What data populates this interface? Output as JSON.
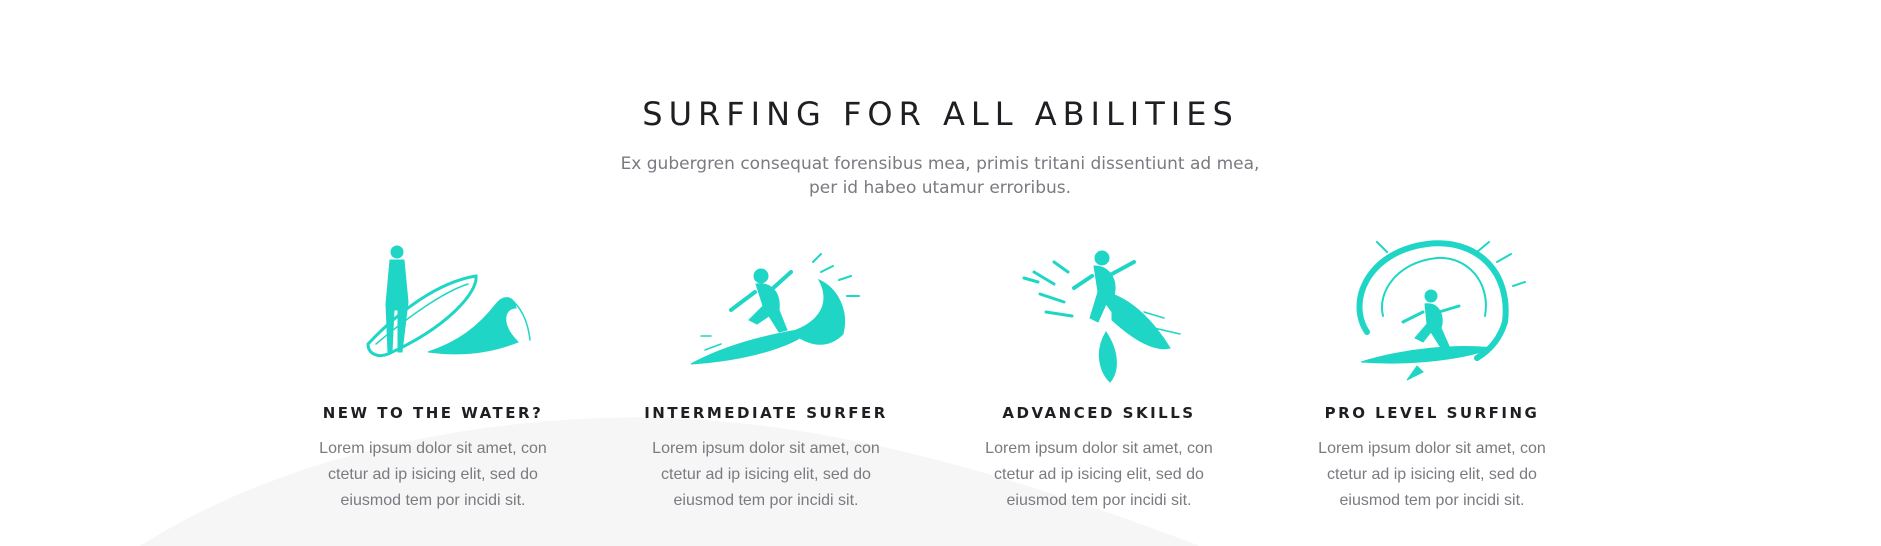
{
  "section": {
    "title": "SURFING FOR ALL ABILITIES",
    "subtitle_line1": "Ex gubergren consequat forensibus mea, primis tritani dissentiunt ad mea,",
    "subtitle_line2": "per id habeo utamur erroribus."
  },
  "accent_color": "#1fd6c6",
  "cards": [
    {
      "icon": "surfer-standing-with-board-icon",
      "heading": "NEW TO THE WATER?",
      "text_line1": "Lorem ipsum dolor sit amet, con",
      "text_line2": "ctetur ad ip isicing elit, sed do",
      "text_line3": "eiusmod tem por incidi sit."
    },
    {
      "icon": "surfer-riding-wave-icon",
      "heading": "INTERMEDIATE SURFER",
      "text_line1": "Lorem ipsum dolor sit amet, con",
      "text_line2": "ctetur ad ip isicing elit, sed do",
      "text_line3": "eiusmod tem por incidi sit."
    },
    {
      "icon": "surfer-carving-icon",
      "heading": "ADVANCED SKILLS",
      "text_line1": "Lorem ipsum dolor sit amet, con",
      "text_line2": "ctetur ad ip isicing elit, sed do",
      "text_line3": "eiusmod tem por incidi sit."
    },
    {
      "icon": "surfer-in-barrel-icon",
      "heading": "PRO LEVEL SURFING",
      "text_line1": "Lorem ipsum dolor sit amet, con",
      "text_line2": "ctetur ad ip isicing elit, sed do",
      "text_line3": "eiusmod tem por incidi sit."
    }
  ]
}
